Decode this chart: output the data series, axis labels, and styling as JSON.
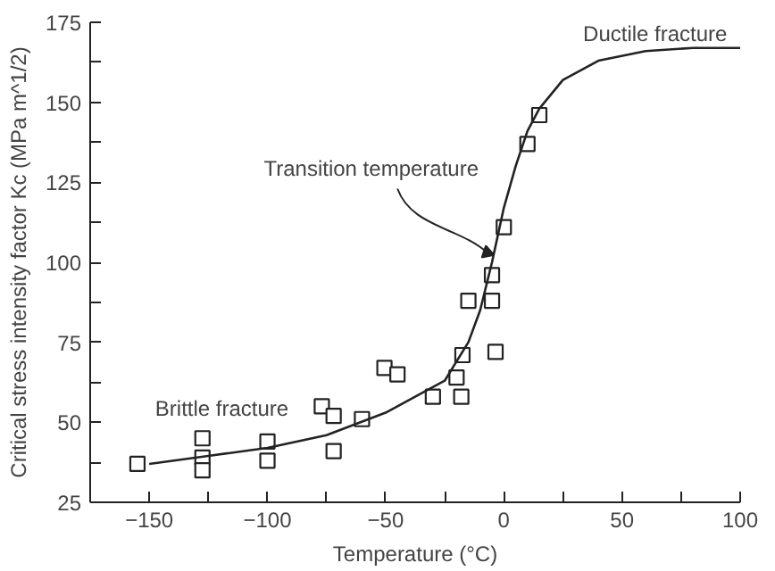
{
  "chart_data": {
    "type": "scatter",
    "xlabel": "Temperature (°C)",
    "ylabel": "Critical stress intensity factor Kc (MPa m^1/2)",
    "xlim": [
      -175,
      100
    ],
    "ylim": [
      25,
      175
    ],
    "xticks": [
      -150,
      {
        "value": -125,
        "label": null
      },
      -100,
      {
        "value": -75,
        "label": null
      },
      -50,
      {
        "value": -25,
        "label": null
      },
      0,
      {
        "value": 25,
        "label": null
      },
      50,
      {
        "value": 75,
        "label": null
      },
      100
    ],
    "yticks": [
      25,
      {
        "value": 37.5,
        "label": null
      },
      50,
      {
        "value": 62.5,
        "label": null
      },
      75,
      {
        "value": 87.5,
        "label": null
      },
      100,
      {
        "value": 112.5,
        "label": null
      },
      125,
      {
        "value": 137.5,
        "label": null
      },
      150,
      {
        "value": 162.5,
        "label": null
      },
      175
    ],
    "grid": false,
    "series": [
      {
        "marker": "square",
        "color": "#222222",
        "x": [
          -155,
          -127.5,
          -127.5,
          -127.5,
          -100,
          -100,
          -77,
          -72,
          -72,
          -60,
          -50.5,
          -45,
          -30,
          -20,
          -18,
          -17.5,
          -15,
          -5,
          -5,
          -3.5,
          0,
          10,
          15
        ],
        "values": [
          37,
          45,
          39,
          35,
          44,
          38,
          55,
          52,
          41,
          51,
          67,
          65,
          58,
          64,
          58,
          71,
          88,
          88,
          96,
          72,
          111,
          137,
          146
        ]
      },
      {
        "type": "line",
        "marker": "none",
        "line_style": "solid",
        "color": "#222222",
        "x": [
          -150,
          -125,
          -100,
          -75,
          -50,
          -25,
          -15,
          -10,
          -5,
          0,
          5,
          10,
          15,
          25,
          40,
          60,
          80,
          100
        ],
        "values": [
          37,
          39.5,
          42,
          46,
          53,
          63,
          75,
          85,
          100,
          117,
          130,
          141,
          148,
          157,
          163,
          166,
          167,
          167
        ]
      }
    ],
    "annotations": [
      "Ductile fracture",
      "Brittle fracture",
      {
        "text": "Transition temperature",
        "x": -7,
        "y": 103
      }
    ]
  }
}
